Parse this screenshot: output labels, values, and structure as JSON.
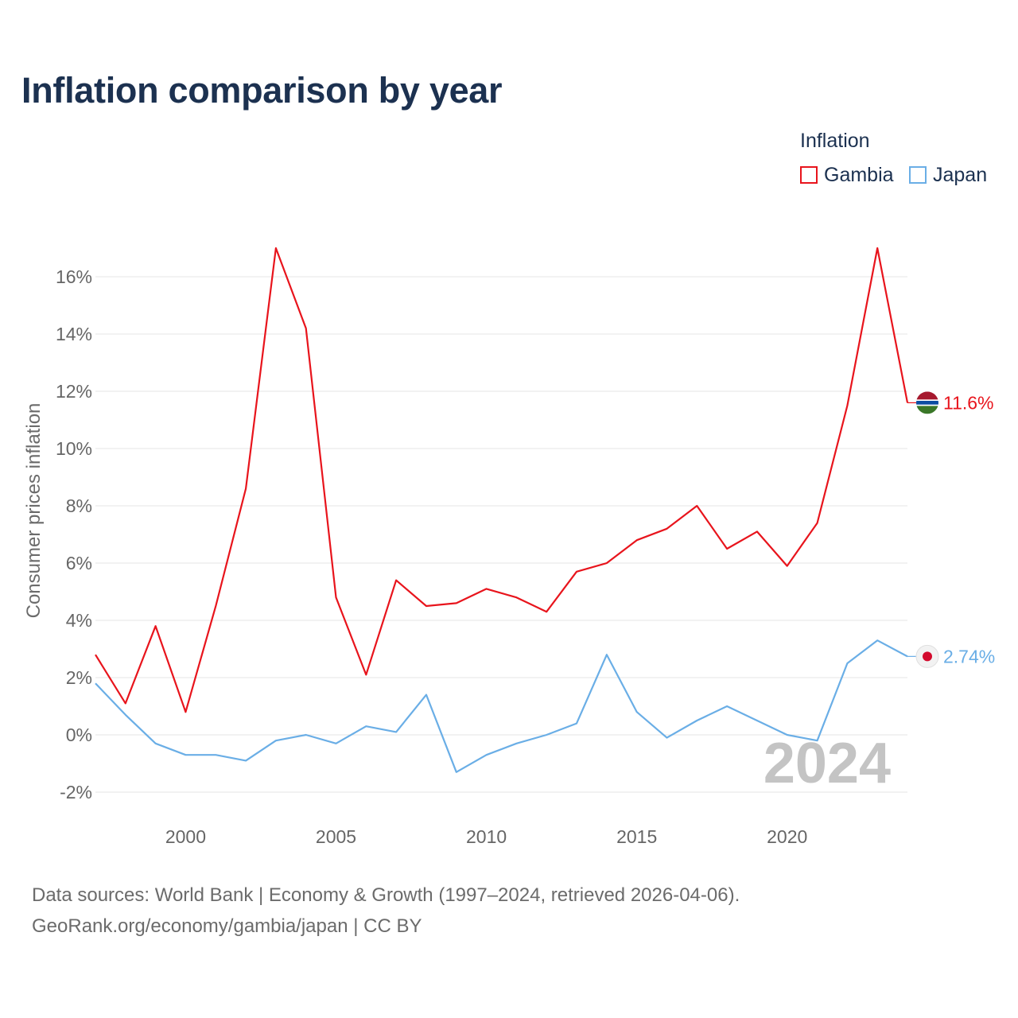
{
  "title": "Inflation comparison by year",
  "legend": {
    "title": "Inflation",
    "items": [
      {
        "label": "Gambia",
        "color": "#e8141c"
      },
      {
        "label": "Japan",
        "color": "#6aaee6"
      }
    ]
  },
  "chart_data": {
    "type": "line",
    "title": "Inflation comparison by year",
    "xlabel": "",
    "ylabel": "Consumer prices inflation",
    "xlim": [
      1997,
      2024
    ],
    "ylim": [
      -3,
      17
    ],
    "grid": true,
    "legend_position": "top-right",
    "x_ticks": [
      2000,
      2005,
      2010,
      2015,
      2020
    ],
    "y_ticks": [
      -2,
      0,
      2,
      4,
      6,
      8,
      10,
      12,
      14,
      16
    ],
    "y_tick_labels": [
      "-2%",
      "0%",
      "2%",
      "4%",
      "6%",
      "8%",
      "10%",
      "12%",
      "14%",
      "16%"
    ],
    "year_watermark": "2024",
    "x": [
      1997,
      1998,
      1999,
      2000,
      2001,
      2002,
      2003,
      2004,
      2005,
      2006,
      2007,
      2008,
      2009,
      2010,
      2011,
      2012,
      2013,
      2014,
      2015,
      2016,
      2017,
      2018,
      2019,
      2020,
      2021,
      2022,
      2023,
      2024
    ],
    "series": [
      {
        "name": "Gambia",
        "color": "#e8141c",
        "end_label": "11.6%",
        "values": [
          2.8,
          1.1,
          3.8,
          0.8,
          4.5,
          8.6,
          17.0,
          14.2,
          4.8,
          2.1,
          5.4,
          4.5,
          4.6,
          5.1,
          4.8,
          4.3,
          5.7,
          6.0,
          6.8,
          7.2,
          8.0,
          6.5,
          7.1,
          5.9,
          7.4,
          11.5,
          17.0,
          11.6
        ]
      },
      {
        "name": "Japan",
        "color": "#6aaee6",
        "end_label": "2.74%",
        "values": [
          1.8,
          0.7,
          -0.3,
          -0.7,
          -0.7,
          -0.9,
          -0.2,
          0.0,
          -0.3,
          0.3,
          0.1,
          1.4,
          -1.3,
          -0.7,
          -0.3,
          0.0,
          0.4,
          2.8,
          0.8,
          -0.1,
          0.5,
          1.0,
          0.5,
          0.0,
          -0.2,
          2.5,
          3.3,
          2.74
        ]
      }
    ]
  },
  "source": {
    "line1": "Data sources: World Bank | Economy & Growth (1997–2024, retrieved 2026-04-06).",
    "line2": "GeoRank.org/economy/gambia/japan | CC BY"
  }
}
